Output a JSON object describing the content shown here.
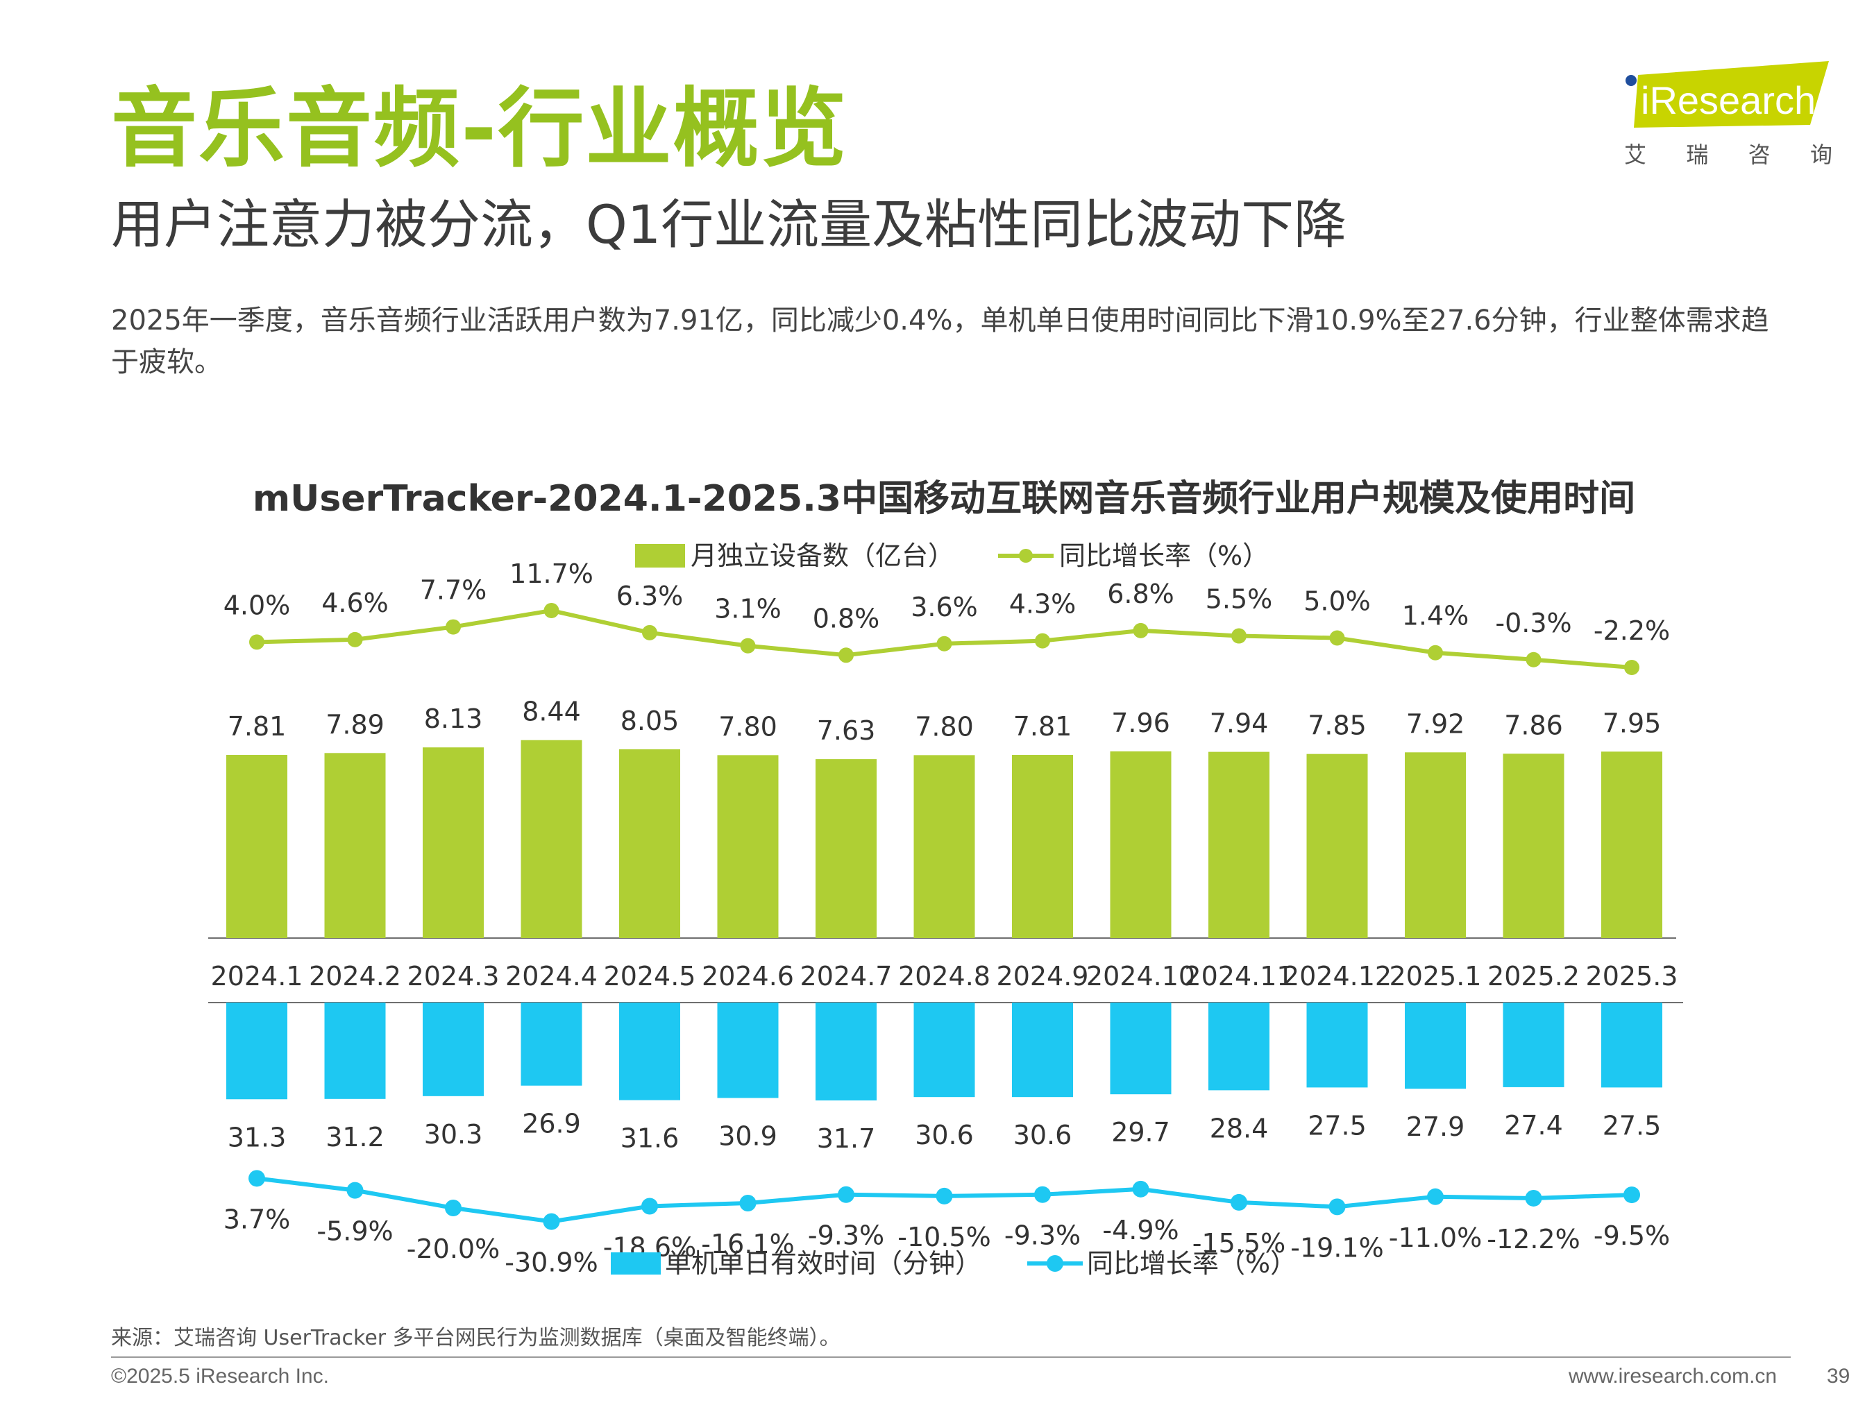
{
  "header": {
    "title": "音乐音频-行业概览",
    "subtitle": "用户注意力被分流，Q1行业流量及粘性同比波动下降",
    "summary": "2025年一季度，音乐音频行业活跃用户数为7.91亿，同比减少0.4%，单机单日使用时间同比下滑10.9%至27.6分钟，行业整体需求趋于疲软。"
  },
  "logo": {
    "brand": "iResearch",
    "chars": [
      "艾",
      "瑞",
      "咨",
      "询"
    ],
    "color_brand": "#c8d400",
    "color_dot": "#1f4e9d"
  },
  "chart_data": {
    "type": "bar",
    "title": "mUserTracker-2024.1-2025.3中国移动互联网音乐音频行业用户规模及使用时间",
    "categories": [
      "2024.1",
      "2024.2",
      "2024.3",
      "2024.4",
      "2024.5",
      "2024.6",
      "2024.7",
      "2024.8",
      "2024.9",
      "2024.10",
      "2024.11",
      "2024.12",
      "2025.1",
      "2025.2",
      "2025.3"
    ],
    "top": {
      "series": [
        {
          "name": "月独立设备数（亿台）",
          "type": "bar",
          "color": "#afcf34",
          "values": [
            7.81,
            7.89,
            8.13,
            8.44,
            8.05,
            7.8,
            7.63,
            7.8,
            7.81,
            7.96,
            7.94,
            7.85,
            7.92,
            7.86,
            7.95
          ],
          "labels": [
            "7.81",
            "7.89",
            "8.13",
            "8.44",
            "8.05",
            "7.80",
            "7.63",
            "7.80",
            "7.81",
            "7.96",
            "7.94",
            "7.85",
            "7.92",
            "7.86",
            "7.95"
          ]
        },
        {
          "name": "同比增长率（%）",
          "type": "line",
          "color": "#afcf34",
          "values": [
            4.0,
            4.6,
            7.7,
            11.7,
            6.3,
            3.1,
            0.8,
            3.6,
            4.3,
            6.8,
            5.5,
            5.0,
            1.4,
            -0.3,
            -2.2
          ],
          "labels": [
            "4.0%",
            "4.6%",
            "7.7%",
            "11.7%",
            "6.3%",
            "3.1%",
            "0.8%",
            "3.6%",
            "4.3%",
            "6.8%",
            "5.5%",
            "5.0%",
            "1.4%",
            "-0.3%",
            "-2.2%"
          ]
        }
      ]
    },
    "bottom": {
      "series": [
        {
          "name": "单机单日有效时间（分钟）",
          "type": "bar",
          "color": "#1ec8f2",
          "values": [
            31.3,
            31.2,
            30.3,
            26.9,
            31.6,
            30.9,
            31.7,
            30.6,
            30.6,
            29.7,
            28.4,
            27.5,
            27.9,
            27.4,
            27.5
          ],
          "labels": [
            "31.3",
            "31.2",
            "30.3",
            "26.9",
            "31.6",
            "30.9",
            "31.7",
            "30.6",
            "30.6",
            "29.7",
            "28.4",
            "27.5",
            "27.9",
            "27.4",
            "27.5"
          ]
        },
        {
          "name": "同比增长率（%）",
          "type": "line",
          "color": "#1ec8f2",
          "values": [
            3.7,
            -5.9,
            -20.0,
            -30.9,
            -18.6,
            -16.1,
            -9.3,
            -10.5,
            -9.3,
            -4.9,
            -15.5,
            -19.1,
            -11.0,
            -12.2,
            -9.5
          ],
          "labels": [
            "3.7%",
            "-5.9%",
            "-20.0%",
            "-30.9%",
            "-18.6%",
            "-16.1%",
            "-9.3%",
            "-10.5%",
            "-9.3%",
            "-4.9%",
            "-15.5%",
            "-19.1%",
            "-11.0%",
            "-12.2%",
            "-9.5%"
          ]
        }
      ]
    },
    "legend_placement_top": "top-center",
    "legend_placement_bottom": "bottom-center",
    "grid": false
  },
  "footer": {
    "source": "来源：艾瑞咨询 UserTracker 多平台网民行为监测数据库（桌面及智能终端）。",
    "copyright": "©2025.5 iResearch Inc.",
    "website": "www.iresearch.com.cn",
    "page_number": "39"
  }
}
